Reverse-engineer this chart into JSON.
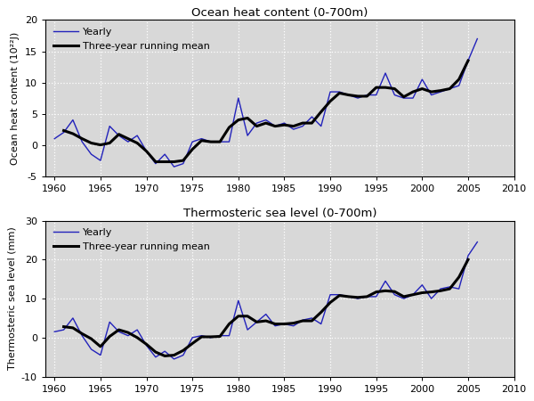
{
  "years": [
    1960,
    1961,
    1962,
    1963,
    1964,
    1965,
    1966,
    1967,
    1968,
    1969,
    1970,
    1971,
    1972,
    1973,
    1974,
    1975,
    1976,
    1977,
    1978,
    1979,
    1980,
    1981,
    1982,
    1983,
    1984,
    1985,
    1986,
    1987,
    1988,
    1989,
    1990,
    1991,
    1992,
    1993,
    1994,
    1995,
    1996,
    1997,
    1998,
    1999,
    2000,
    2001,
    2002,
    2003,
    2004,
    2005,
    2006
  ],
  "ohc_yearly": [
    1.0,
    2.0,
    4.0,
    0.5,
    -1.5,
    -2.5,
    3.0,
    1.5,
    0.5,
    1.5,
    -1.0,
    -3.0,
    -1.5,
    -3.5,
    -3.0,
    0.5,
    1.0,
    0.5,
    0.5,
    0.5,
    7.5,
    1.5,
    3.5,
    4.0,
    3.0,
    3.5,
    2.5,
    3.0,
    4.5,
    3.0,
    8.5,
    8.5,
    8.0,
    7.5,
    8.0,
    8.0,
    11.5,
    8.0,
    7.5,
    7.5,
    10.5,
    8.0,
    8.5,
    9.0,
    9.5,
    13.5,
    17.0
  ],
  "ohc_running": [
    null,
    2.3,
    1.8,
    1.0,
    0.3,
    0.0,
    0.3,
    1.7,
    1.0,
    0.3,
    -1.0,
    -2.7,
    -2.7,
    -2.7,
    -2.5,
    -0.7,
    0.7,
    0.5,
    0.5,
    2.8,
    4.0,
    4.3,
    3.0,
    3.5,
    3.0,
    3.2,
    3.0,
    3.5,
    3.5,
    5.3,
    7.0,
    8.3,
    8.0,
    7.8,
    7.8,
    9.2,
    9.2,
    9.0,
    7.7,
    8.5,
    9.0,
    8.5,
    8.7,
    9.0,
    10.5,
    13.5,
    null
  ],
  "tsl_yearly": [
    1.5,
    2.0,
    5.0,
    0.5,
    -3.0,
    -4.5,
    4.0,
    1.5,
    0.5,
    2.0,
    -2.0,
    -5.0,
    -3.5,
    -5.5,
    -4.5,
    0.0,
    0.5,
    0.0,
    0.5,
    0.5,
    9.5,
    2.0,
    4.0,
    6.0,
    3.0,
    3.5,
    3.0,
    4.5,
    5.0,
    3.5,
    11.0,
    11.0,
    10.5,
    10.0,
    10.5,
    10.5,
    14.5,
    11.0,
    10.0,
    11.0,
    13.5,
    10.0,
    12.5,
    13.0,
    12.5,
    21.0,
    24.5
  ],
  "tsl_running": [
    null,
    2.8,
    2.5,
    1.0,
    -0.3,
    -2.3,
    0.3,
    2.0,
    1.3,
    0.0,
    -1.7,
    -3.7,
    -4.7,
    -4.5,
    -3.3,
    -1.5,
    0.2,
    0.2,
    0.3,
    3.5,
    5.5,
    5.5,
    4.0,
    4.3,
    3.5,
    3.5,
    3.7,
    4.3,
    4.3,
    6.5,
    9.0,
    10.8,
    10.5,
    10.3,
    10.5,
    11.7,
    12.0,
    11.8,
    10.5,
    11.0,
    11.5,
    11.7,
    12.0,
    12.5,
    15.5,
    20.0,
    null
  ],
  "title_ohc": "Ocean heat content (0-700m)",
  "title_tsl": "Thermosteric sea level (0-700m)",
  "ylabel_ohc": "Ocean heat content (10²²J)",
  "ylabel_tsl": "Thermosteric sea level (mm)",
  "xlim": [
    1959,
    2010
  ],
  "ohc_ylim": [
    -5,
    20
  ],
  "tsl_ylim": [
    -10,
    30
  ],
  "ohc_yticks": [
    -5,
    0,
    5,
    10,
    15,
    20
  ],
  "tsl_yticks": [
    -10,
    0,
    10,
    20,
    30
  ],
  "xticks": [
    1960,
    1965,
    1970,
    1975,
    1980,
    1985,
    1990,
    1995,
    2000,
    2005,
    2010
  ],
  "yearly_color": "#2222bb",
  "running_color": "#000000",
  "yearly_lw": 1.0,
  "running_lw": 2.2,
  "legend_yearly": "Yearly",
  "legend_running": "Three-year running mean",
  "bg_color": "#d8d8d8",
  "figsize": [
    6.0,
    4.5
  ],
  "dpi": 100
}
